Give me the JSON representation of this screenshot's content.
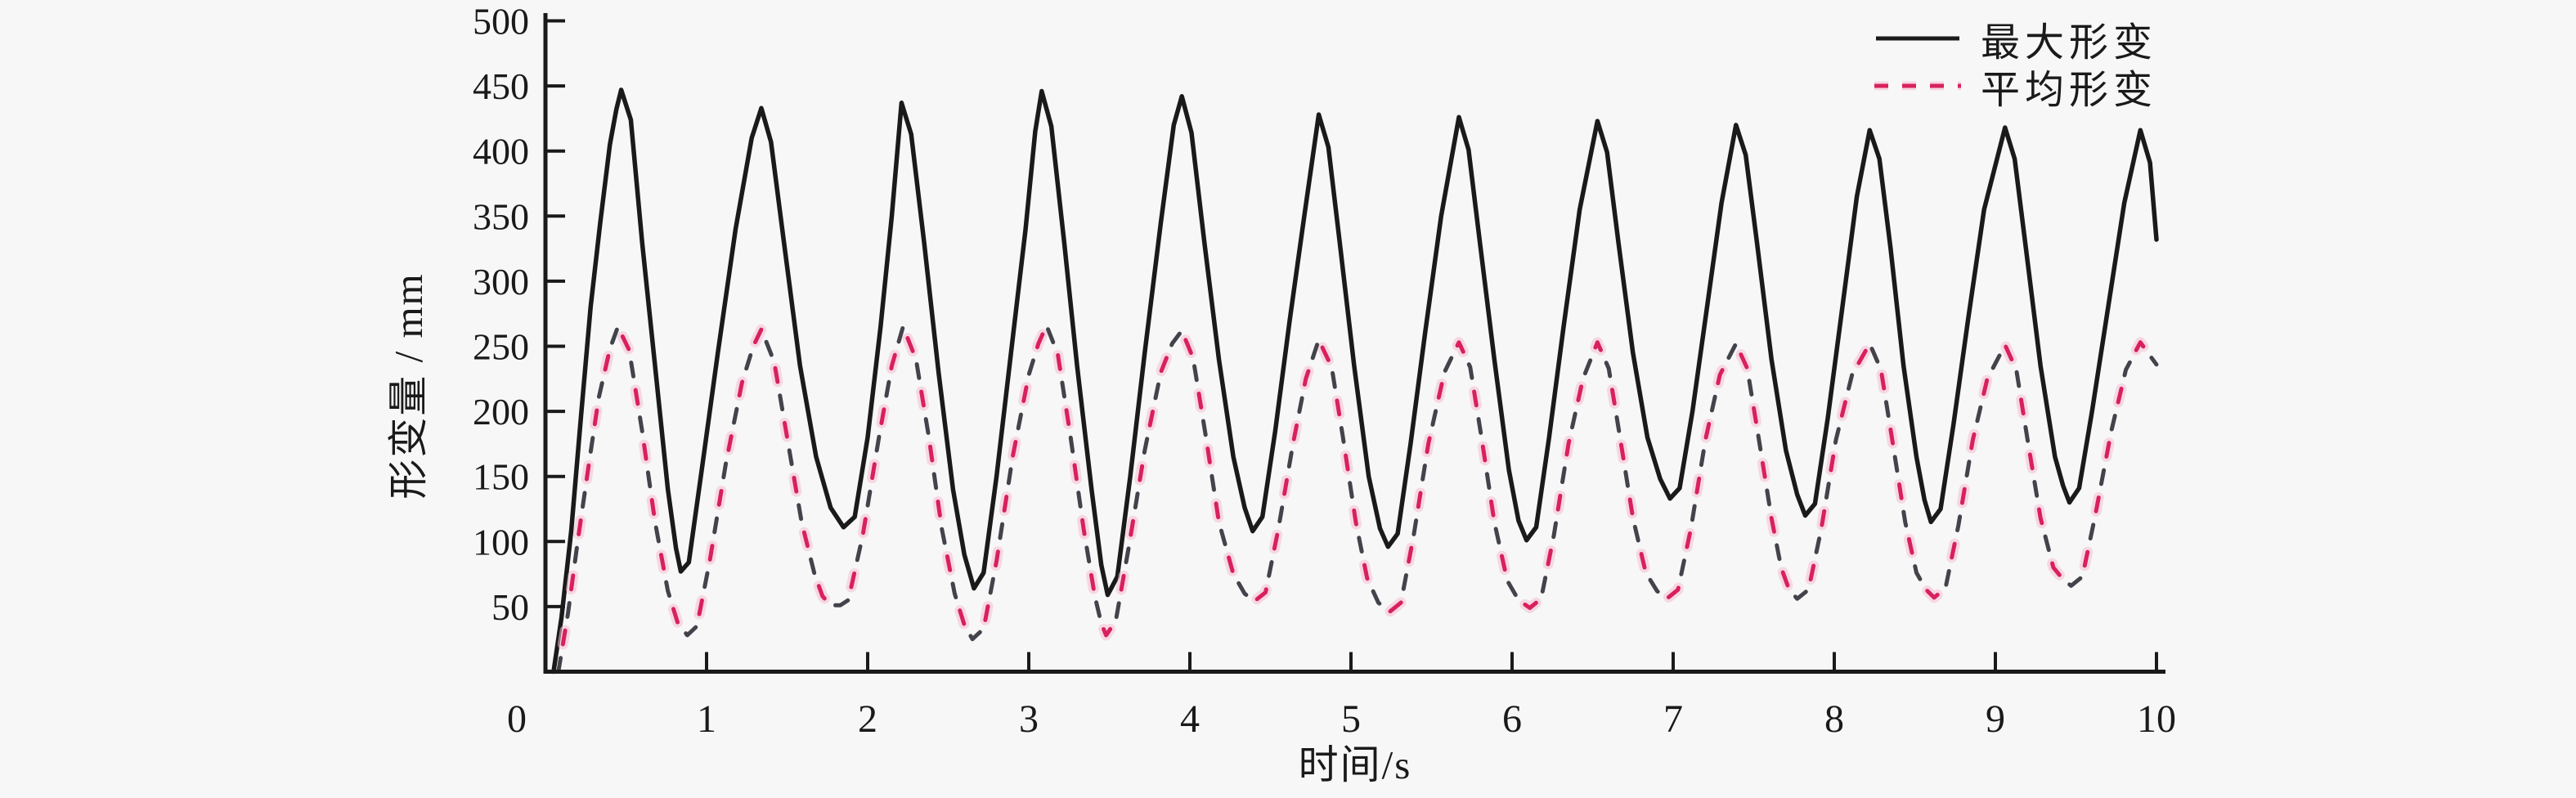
{
  "figure": {
    "background": "#f7f7f8",
    "text_color": "#1a1a1a",
    "axis_color": "#1a1a1a"
  },
  "chart_data": {
    "type": "line",
    "title": "",
    "xlabel": "时间/s",
    "ylabel": "形变量 / mm",
    "xlim": [
      0,
      10
    ],
    "ylim": [
      0,
      500
    ],
    "x_ticks": [
      0,
      1,
      2,
      3,
      4,
      5,
      6,
      7,
      8,
      9,
      10
    ],
    "y_ticks": [
      50,
      100,
      150,
      200,
      250,
      300,
      350,
      400,
      450,
      500
    ],
    "grid": false,
    "legend_position": "top-right",
    "series": [
      {
        "name": "最大形变",
        "style": "solid",
        "color": "#1a1a1a",
        "points": [
          [
            0.05,
            0
          ],
          [
            0.1,
            42
          ],
          [
            0.16,
            108
          ],
          [
            0.22,
            195
          ],
          [
            0.28,
            280
          ],
          [
            0.34,
            345
          ],
          [
            0.4,
            405
          ],
          [
            0.44,
            432
          ],
          [
            0.47,
            447
          ],
          [
            0.53,
            424
          ],
          [
            0.6,
            330
          ],
          [
            0.68,
            235
          ],
          [
            0.76,
            140
          ],
          [
            0.81,
            95
          ],
          [
            0.84,
            77
          ],
          [
            0.89,
            84
          ],
          [
            0.97,
            155
          ],
          [
            1.07,
            245
          ],
          [
            1.18,
            340
          ],
          [
            1.28,
            410
          ],
          [
            1.34,
            433
          ],
          [
            1.4,
            407
          ],
          [
            1.48,
            330
          ],
          [
            1.58,
            235
          ],
          [
            1.68,
            165
          ],
          [
            1.77,
            126
          ],
          [
            1.85,
            111
          ],
          [
            1.92,
            119
          ],
          [
            2.0,
            180
          ],
          [
            2.08,
            265
          ],
          [
            2.15,
            350
          ],
          [
            2.21,
            437
          ],
          [
            2.27,
            413
          ],
          [
            2.35,
            330
          ],
          [
            2.44,
            230
          ],
          [
            2.53,
            140
          ],
          [
            2.6,
            90
          ],
          [
            2.66,
            64
          ],
          [
            2.72,
            76
          ],
          [
            2.8,
            150
          ],
          [
            2.89,
            245
          ],
          [
            2.98,
            340
          ],
          [
            3.04,
            415
          ],
          [
            3.08,
            446
          ],
          [
            3.14,
            419
          ],
          [
            3.22,
            330
          ],
          [
            3.3,
            235
          ],
          [
            3.39,
            140
          ],
          [
            3.45,
            82
          ],
          [
            3.49,
            59
          ],
          [
            3.55,
            73
          ],
          [
            3.63,
            150
          ],
          [
            3.72,
            245
          ],
          [
            3.82,
            345
          ],
          [
            3.9,
            420
          ],
          [
            3.95,
            442
          ],
          [
            4.01,
            414
          ],
          [
            4.09,
            330
          ],
          [
            4.18,
            240
          ],
          [
            4.27,
            165
          ],
          [
            4.34,
            126
          ],
          [
            4.39,
            108
          ],
          [
            4.45,
            119
          ],
          [
            4.53,
            185
          ],
          [
            4.62,
            270
          ],
          [
            4.71,
            350
          ],
          [
            4.8,
            428
          ],
          [
            4.86,
            403
          ],
          [
            4.93,
            330
          ],
          [
            5.02,
            235
          ],
          [
            5.11,
            150
          ],
          [
            5.18,
            110
          ],
          [
            5.23,
            96
          ],
          [
            5.29,
            106
          ],
          [
            5.37,
            175
          ],
          [
            5.46,
            260
          ],
          [
            5.56,
            350
          ],
          [
            5.67,
            426
          ],
          [
            5.73,
            401
          ],
          [
            5.8,
            330
          ],
          [
            5.89,
            240
          ],
          [
            5.98,
            155
          ],
          [
            6.04,
            116
          ],
          [
            6.09,
            101
          ],
          [
            6.15,
            111
          ],
          [
            6.23,
            180
          ],
          [
            6.32,
            265
          ],
          [
            6.42,
            355
          ],
          [
            6.53,
            423
          ],
          [
            6.59,
            399
          ],
          [
            6.66,
            330
          ],
          [
            6.75,
            245
          ],
          [
            6.84,
            180
          ],
          [
            6.92,
            148
          ],
          [
            6.98,
            133
          ],
          [
            7.04,
            141
          ],
          [
            7.12,
            200
          ],
          [
            7.21,
            280
          ],
          [
            7.3,
            360
          ],
          [
            7.39,
            420
          ],
          [
            7.45,
            397
          ],
          [
            7.52,
            330
          ],
          [
            7.61,
            240
          ],
          [
            7.7,
            170
          ],
          [
            7.77,
            136
          ],
          [
            7.82,
            120
          ],
          [
            7.88,
            129
          ],
          [
            7.96,
            195
          ],
          [
            8.05,
            280
          ],
          [
            8.14,
            365
          ],
          [
            8.22,
            416
          ],
          [
            8.28,
            394
          ],
          [
            8.35,
            325
          ],
          [
            8.43,
            235
          ],
          [
            8.51,
            165
          ],
          [
            8.56,
            132
          ],
          [
            8.6,
            115
          ],
          [
            8.66,
            125
          ],
          [
            8.74,
            190
          ],
          [
            8.83,
            270
          ],
          [
            8.93,
            355
          ],
          [
            9.06,
            418
          ],
          [
            9.12,
            394
          ],
          [
            9.19,
            325
          ],
          [
            9.28,
            235
          ],
          [
            9.37,
            165
          ],
          [
            9.42,
            143
          ],
          [
            9.46,
            130
          ],
          [
            9.52,
            141
          ],
          [
            9.6,
            200
          ],
          [
            9.7,
            280
          ],
          [
            9.8,
            360
          ],
          [
            9.9,
            416
          ],
          [
            9.96,
            391
          ],
          [
            10.0,
            332
          ]
        ]
      },
      {
        "name": "平均形变",
        "style": "dashed",
        "color": "#d8215c",
        "secondary_color": "#43434b",
        "halo_color": "#f6bed4",
        "points": [
          [
            0.08,
            0
          ],
          [
            0.14,
            45
          ],
          [
            0.2,
            100
          ],
          [
            0.27,
            160
          ],
          [
            0.33,
            210
          ],
          [
            0.4,
            248
          ],
          [
            0.45,
            265
          ],
          [
            0.52,
            247
          ],
          [
            0.6,
            185
          ],
          [
            0.68,
            115
          ],
          [
            0.76,
            62
          ],
          [
            0.82,
            38
          ],
          [
            0.88,
            28
          ],
          [
            0.94,
            35
          ],
          [
            1.02,
            85
          ],
          [
            1.12,
            160
          ],
          [
            1.22,
            222
          ],
          [
            1.29,
            250
          ],
          [
            1.34,
            263
          ],
          [
            1.42,
            238
          ],
          [
            1.5,
            180
          ],
          [
            1.59,
            115
          ],
          [
            1.67,
            75
          ],
          [
            1.72,
            58
          ],
          [
            1.77,
            51
          ],
          [
            1.83,
            51
          ],
          [
            1.88,
            55
          ],
          [
            1.97,
            105
          ],
          [
            2.07,
            180
          ],
          [
            2.15,
            235
          ],
          [
            2.22,
            265
          ],
          [
            2.3,
            240
          ],
          [
            2.38,
            180
          ],
          [
            2.46,
            110
          ],
          [
            2.54,
            60
          ],
          [
            2.6,
            36
          ],
          [
            2.65,
            25
          ],
          [
            2.72,
            33
          ],
          [
            2.8,
            85
          ],
          [
            2.9,
            165
          ],
          [
            3.0,
            228
          ],
          [
            3.06,
            252
          ],
          [
            3.11,
            266
          ],
          [
            3.18,
            244
          ],
          [
            3.26,
            180
          ],
          [
            3.34,
            110
          ],
          [
            3.41,
            58
          ],
          [
            3.45,
            37
          ],
          [
            3.48,
            28
          ],
          [
            3.54,
            39
          ],
          [
            3.62,
            95
          ],
          [
            3.72,
            170
          ],
          [
            3.82,
            230
          ],
          [
            3.89,
            252
          ],
          [
            3.95,
            262
          ],
          [
            4.02,
            241
          ],
          [
            4.1,
            180
          ],
          [
            4.18,
            115
          ],
          [
            4.27,
            75
          ],
          [
            4.34,
            60
          ],
          [
            4.4,
            54
          ],
          [
            4.47,
            61
          ],
          [
            4.55,
            110
          ],
          [
            4.64,
            175
          ],
          [
            4.72,
            225
          ],
          [
            4.8,
            255
          ],
          [
            4.88,
            234
          ],
          [
            4.95,
            180
          ],
          [
            5.03,
            115
          ],
          [
            5.1,
            72
          ],
          [
            5.17,
            53
          ],
          [
            5.24,
            46
          ],
          [
            5.31,
            53
          ],
          [
            5.39,
            105
          ],
          [
            5.48,
            175
          ],
          [
            5.58,
            230
          ],
          [
            5.67,
            253
          ],
          [
            5.74,
            234
          ],
          [
            5.81,
            180
          ],
          [
            5.89,
            115
          ],
          [
            5.97,
            70
          ],
          [
            6.04,
            55
          ],
          [
            6.11,
            49
          ],
          [
            6.18,
            56
          ],
          [
            6.26,
            105
          ],
          [
            6.35,
            175
          ],
          [
            6.44,
            225
          ],
          [
            6.53,
            253
          ],
          [
            6.6,
            233
          ],
          [
            6.67,
            180
          ],
          [
            6.75,
            118
          ],
          [
            6.83,
            76
          ],
          [
            6.9,
            62
          ],
          [
            6.96,
            56
          ],
          [
            7.03,
            63
          ],
          [
            7.11,
            110
          ],
          [
            7.2,
            178
          ],
          [
            7.29,
            228
          ],
          [
            7.39,
            252
          ],
          [
            7.46,
            233
          ],
          [
            7.53,
            180
          ],
          [
            7.61,
            118
          ],
          [
            7.67,
            80
          ],
          [
            7.72,
            63
          ],
          [
            7.77,
            56
          ],
          [
            7.84,
            63
          ],
          [
            7.92,
            110
          ],
          [
            8.01,
            178
          ],
          [
            8.11,
            228
          ],
          [
            8.22,
            252
          ],
          [
            8.29,
            232
          ],
          [
            8.36,
            178
          ],
          [
            8.44,
            115
          ],
          [
            8.51,
            76
          ],
          [
            8.57,
            63
          ],
          [
            8.62,
            57
          ],
          [
            8.69,
            64
          ],
          [
            8.77,
            112
          ],
          [
            8.86,
            178
          ],
          [
            8.95,
            225
          ],
          [
            9.06,
            251
          ],
          [
            9.13,
            232
          ],
          [
            9.2,
            178
          ],
          [
            9.28,
            118
          ],
          [
            9.36,
            80
          ],
          [
            9.42,
            71
          ],
          [
            9.47,
            66
          ],
          [
            9.54,
            73
          ],
          [
            9.62,
            120
          ],
          [
            9.72,
            185
          ],
          [
            9.81,
            232
          ],
          [
            9.9,
            253
          ],
          [
            9.97,
            241
          ],
          [
            10.0,
            236
          ]
        ]
      }
    ]
  }
}
